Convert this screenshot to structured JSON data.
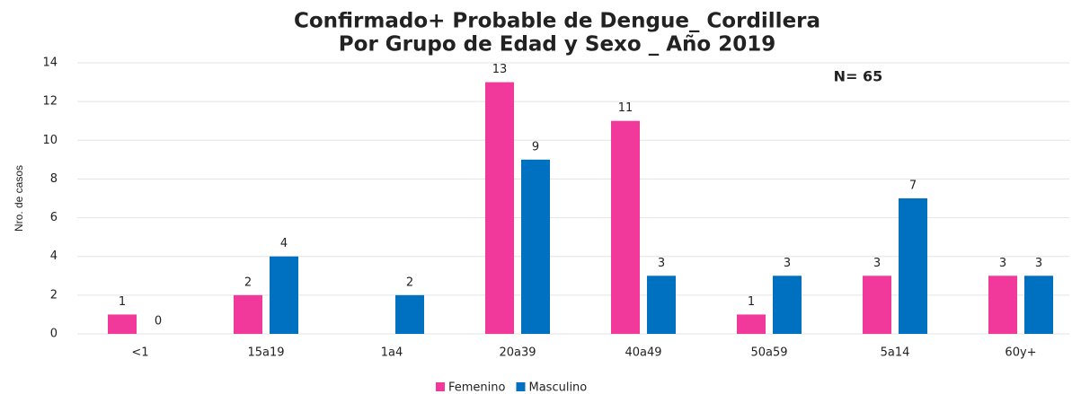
{
  "chart_data": {
    "type": "bar",
    "title": [
      "Confirmado+ Probable de Dengue_ Cordillera",
      "Por Grupo de Edad y Sexo _ Año 2019"
    ],
    "annotation": "N= 65",
    "y_label": "Nro. de casos",
    "categories": [
      "<1",
      "15a19",
      "1a4",
      "20a39",
      "40a49",
      "50a59",
      "5a14",
      "60y+"
    ],
    "series": [
      {
        "name": "Femenino",
        "color": "#f0399a",
        "values": [
          1,
          2,
          null,
          13,
          11,
          1,
          3,
          3
        ]
      },
      {
        "name": "Masculino",
        "color": "#0070c0",
        "values": [
          0,
          4,
          2,
          9,
          3,
          3,
          7,
          3
        ]
      }
    ],
    "ylim": [
      0,
      14
    ],
    "yticks": [
      0,
      2,
      4,
      6,
      8,
      10,
      12,
      14
    ],
    "grid": true,
    "legend": "bottom"
  }
}
